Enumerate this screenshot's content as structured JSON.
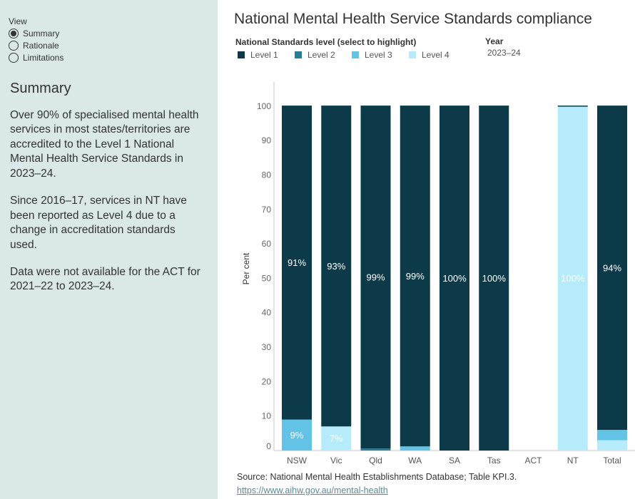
{
  "sidebar": {
    "view_label": "View",
    "view_options": [
      {
        "label": "Summary",
        "selected": true
      },
      {
        "label": "Rationale",
        "selected": false
      },
      {
        "label": "Limitations",
        "selected": false
      }
    ],
    "heading": "Summary",
    "paragraphs": [
      "Over 90% of specialised mental health services in most states/territories are accredited to the Level 1 National Mental Health Service Standards in 2023–24.",
      "Since 2016–17, services in NT have been reported as Level 4 due to a change in accreditation standards used.",
      "Data were not available for the ACT for 2021–22 to 2023–24."
    ]
  },
  "year_filter": {
    "label": "Year",
    "value": "2023–24"
  },
  "chart_data": {
    "type": "bar",
    "stacked": true,
    "title": "National Mental Health Service Standards compliance",
    "legend_title": "National Standards level (select to highlight)",
    "legend": "top-left",
    "grid": false,
    "ylabel": "Per cent",
    "ylim": [
      0,
      107
    ],
    "yticks": [
      0,
      10,
      20,
      30,
      40,
      50,
      60,
      70,
      80,
      90,
      100
    ],
    "categories": [
      "NSW",
      "Vic",
      "Qld",
      "WA",
      "SA",
      "Tas",
      "ACT",
      "NT",
      "Total"
    ],
    "series": [
      {
        "name": "Level 1",
        "color": "#0c3a49",
        "values": [
          91,
          93,
          99.4,
          98.8,
          100,
          100,
          null,
          0,
          94
        ]
      },
      {
        "name": "Level 2",
        "color": "#2a7d98",
        "values": [
          0,
          0,
          0.6,
          0,
          0,
          0,
          null,
          0,
          0
        ]
      },
      {
        "name": "Level 3",
        "color": "#62c3e6",
        "values": [
          9,
          0,
          0,
          1.2,
          0,
          0,
          null,
          0,
          3
        ]
      },
      {
        "name": "Level 4",
        "color": "#b6ebfb",
        "values": [
          0,
          7,
          0,
          0,
          0,
          0,
          null,
          100,
          3
        ]
      }
    ]
  },
  "footer": {
    "source": "Source: National Mental Health Establishments Database; Table KPI.3.",
    "link": "https://www.aihw.gov.au/mental-health"
  }
}
